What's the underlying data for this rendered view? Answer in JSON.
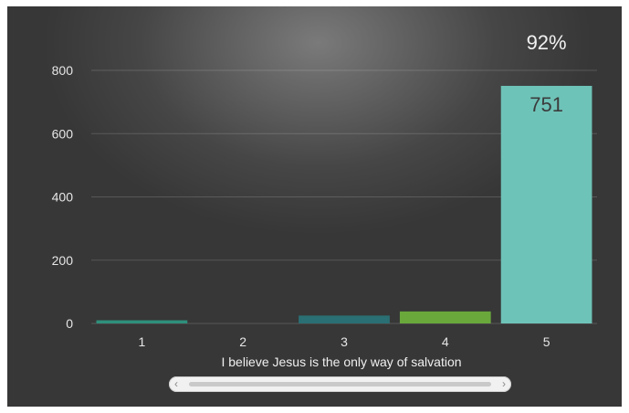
{
  "chart_data": {
    "type": "bar",
    "categories": [
      "1",
      "2",
      "3",
      "4",
      "5"
    ],
    "values": [
      10,
      0,
      25,
      38,
      751
    ],
    "colors": [
      "#2f8f7c",
      "#3b3b3b",
      "#2a6f74",
      "#6aa83c",
      "#6ec3b8"
    ],
    "value_labels": {
      "5": "751"
    },
    "top_annotation": "92%",
    "xlabel": "I believe Jesus is the only way of salvation",
    "ylabel": "",
    "title": "",
    "yticks": [
      0,
      200,
      400,
      600,
      800
    ],
    "ylim": [
      0,
      800
    ],
    "grid": true,
    "background": "#464646"
  },
  "scrollbar": {
    "left_arrow": "‹",
    "right_arrow": "›"
  }
}
